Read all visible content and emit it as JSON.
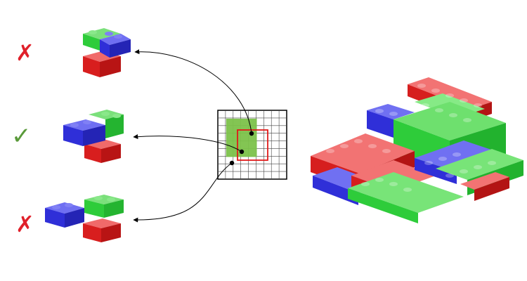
{
  "options": [
    {
      "mark": "✗",
      "status": "rejected",
      "mark_color": "#e0202a"
    },
    {
      "mark": "✓",
      "status": "accepted",
      "mark_color": "#5a9a3a"
    },
    {
      "mark": "✗",
      "status": "rejected",
      "mark_color": "#e0202a"
    }
  ],
  "grid": {
    "columns": 9,
    "rows": 9,
    "cell_border_color": "#000000",
    "highlight_color": "#7cc24a",
    "selection_color": "#e01a1a"
  },
  "colors": {
    "red": "#e02222",
    "green": "#2ecc3a",
    "blue": "#2f2fd8"
  }
}
